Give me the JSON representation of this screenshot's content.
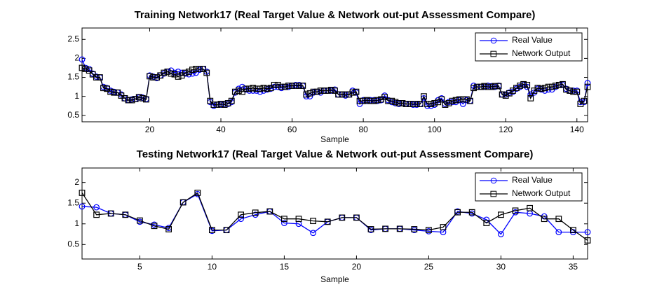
{
  "chart_data": [
    {
      "type": "line",
      "title": "Training Network17 (Real Target Value & Network out-put Assessment Compare)",
      "xlabel": "Sample",
      "x": [
        1,
        2,
        3,
        4,
        5,
        6,
        7,
        8,
        9,
        10,
        11,
        12,
        13,
        14,
        15,
        16,
        17,
        18,
        19,
        20,
        21,
        22,
        23,
        24,
        25,
        26,
        27,
        28,
        29,
        30,
        31,
        32,
        33,
        34,
        35,
        36,
        37,
        38,
        39,
        40,
        41,
        42,
        43,
        44,
        45,
        46,
        47,
        48,
        49,
        50,
        51,
        52,
        53,
        54,
        55,
        56,
        57,
        58,
        59,
        60,
        61,
        62,
        63,
        64,
        65,
        66,
        67,
        68,
        69,
        70,
        71,
        72,
        73,
        74,
        75,
        76,
        77,
        78,
        79,
        80,
        81,
        82,
        83,
        84,
        85,
        86,
        87,
        88,
        89,
        90,
        91,
        92,
        93,
        94,
        95,
        96,
        97,
        98,
        99,
        100,
        101,
        102,
        103,
        104,
        105,
        106,
        107,
        108,
        109,
        110,
        111,
        112,
        113,
        114,
        115,
        116,
        117,
        118,
        119,
        120,
        121,
        122,
        123,
        124,
        125,
        126,
        127,
        128,
        129,
        130,
        131,
        132,
        133,
        134,
        135,
        136,
        137,
        138,
        139,
        140,
        141,
        142,
        143
      ],
      "series": [
        {
          "name": "Real Value",
          "color": "#0000ff",
          "marker": "o",
          "values": [
            1.97,
            1.75,
            1.72,
            1.6,
            1.52,
            1.5,
            1.25,
            1.22,
            1.15,
            1.12,
            1.1,
            1.05,
            0.95,
            0.9,
            0.92,
            0.93,
            0.97,
            0.97,
            0.93,
            1.55,
            1.52,
            1.48,
            1.55,
            1.6,
            1.65,
            1.68,
            1.62,
            1.65,
            1.62,
            1.6,
            1.58,
            1.6,
            1.62,
            1.7,
            1.72,
            1.65,
            0.85,
            0.75,
            0.78,
            0.78,
            0.8,
            0.8,
            0.85,
            1.1,
            1.2,
            1.25,
            1.18,
            1.15,
            1.15,
            1.15,
            1.12,
            1.15,
            1.18,
            1.2,
            1.25,
            1.25,
            1.22,
            1.25,
            1.25,
            1.28,
            1.3,
            1.3,
            1.28,
            1.0,
            1.0,
            1.1,
            1.12,
            1.1,
            1.15,
            1.15,
            1.15,
            1.18,
            1.05,
            1.05,
            1.02,
            1.05,
            1.15,
            1.1,
            0.8,
            0.9,
            0.88,
            0.9,
            0.9,
            0.88,
            0.9,
            1.02,
            0.9,
            0.85,
            0.82,
            0.8,
            0.82,
            0.8,
            0.8,
            0.78,
            0.78,
            0.8,
            0.95,
            0.75,
            0.75,
            0.78,
            0.9,
            0.95,
            0.8,
            0.85,
            0.85,
            0.85,
            0.9,
            0.8,
            0.9,
            0.88,
            1.28,
            1.25,
            1.25,
            1.25,
            1.28,
            1.27,
            1.25,
            1.28,
            1.05,
            1.05,
            1.1,
            1.12,
            1.2,
            1.25,
            1.3,
            1.25,
            1.05,
            1.1,
            1.2,
            1.18,
            1.15,
            1.18,
            1.18,
            1.25,
            1.3,
            1.3,
            1.2,
            1.15,
            1.15,
            1.15,
            0.85,
            0.85,
            1.35
          ]
        },
        {
          "name": "Network Output",
          "color": "#000000",
          "marker": "s",
          "values": [
            1.75,
            1.72,
            1.68,
            1.58,
            1.5,
            1.5,
            1.22,
            1.2,
            1.12,
            1.1,
            1.1,
            1.02,
            0.95,
            0.9,
            0.9,
            0.93,
            0.98,
            0.95,
            0.92,
            1.53,
            1.5,
            1.5,
            1.55,
            1.62,
            1.65,
            1.6,
            1.58,
            1.52,
            1.55,
            1.62,
            1.65,
            1.7,
            1.72,
            1.72,
            1.72,
            1.62,
            0.88,
            0.78,
            0.78,
            0.8,
            0.78,
            0.82,
            0.88,
            1.12,
            1.15,
            1.12,
            1.2,
            1.2,
            1.22,
            1.2,
            1.2,
            1.22,
            1.2,
            1.22,
            1.3,
            1.3,
            1.25,
            1.25,
            1.28,
            1.28,
            1.28,
            1.28,
            1.28,
            1.05,
            1.08,
            1.12,
            1.12,
            1.15,
            1.15,
            1.15,
            1.17,
            1.15,
            1.05,
            1.05,
            1.05,
            1.05,
            1.1,
            1.12,
            0.88,
            0.88,
            0.9,
            0.88,
            0.88,
            0.9,
            0.92,
            0.98,
            0.88,
            0.88,
            0.85,
            0.82,
            0.82,
            0.8,
            0.8,
            0.8,
            0.8,
            0.8,
            1.0,
            0.8,
            0.8,
            0.82,
            0.85,
            0.92,
            0.78,
            0.82,
            0.88,
            0.9,
            0.92,
            0.92,
            0.92,
            0.88,
            1.22,
            1.25,
            1.25,
            1.27,
            1.25,
            1.25,
            1.27,
            1.27,
            1.05,
            1.02,
            1.08,
            1.15,
            1.22,
            1.28,
            1.32,
            1.3,
            0.95,
            1.15,
            1.22,
            1.2,
            1.22,
            1.25,
            1.25,
            1.28,
            1.3,
            1.32,
            1.18,
            1.15,
            1.12,
            1.12,
            0.8,
            0.88,
            1.25
          ]
        }
      ],
      "xlim": [
        1,
        143
      ],
      "ylim": [
        0.33,
        2.8
      ],
      "xticks": [
        20,
        40,
        60,
        80,
        100,
        120,
        140
      ],
      "yticks": [
        0.5,
        1,
        1.5,
        2,
        2.5
      ],
      "legend": "upper right"
    },
    {
      "type": "line",
      "title": "Testing Network17 (Real Target Value & Network out-put Assessment Compare)",
      "xlabel": "Sample",
      "x": [
        1,
        2,
        3,
        4,
        5,
        6,
        7,
        8,
        9,
        10,
        11,
        12,
        13,
        14,
        15,
        16,
        17,
        18,
        19,
        20,
        21,
        22,
        23,
        24,
        25,
        26,
        27,
        28,
        29,
        30,
        31,
        32,
        33,
        34,
        35,
        36
      ],
      "series": [
        {
          "name": "Real Value",
          "color": "#0000ff",
          "marker": "o",
          "values": [
            1.42,
            1.4,
            1.25,
            1.22,
            1.05,
            0.98,
            0.9,
            1.52,
            1.72,
            0.83,
            0.85,
            1.12,
            1.22,
            1.3,
            1.02,
            1.0,
            0.78,
            1.05,
            1.15,
            1.15,
            0.85,
            0.88,
            0.88,
            0.85,
            0.82,
            0.8,
            1.3,
            1.25,
            1.1,
            0.75,
            1.28,
            1.25,
            1.18,
            0.8,
            0.8,
            0.8
          ]
        },
        {
          "name": "Network Output",
          "color": "#000000",
          "marker": "s",
          "values": [
            1.75,
            1.22,
            1.25,
            1.22,
            1.08,
            0.95,
            0.87,
            1.52,
            1.75,
            0.85,
            0.85,
            1.22,
            1.27,
            1.3,
            1.12,
            1.12,
            1.07,
            1.05,
            1.15,
            1.15,
            0.87,
            0.88,
            0.88,
            0.87,
            0.85,
            0.92,
            1.28,
            1.28,
            1.02,
            1.22,
            1.32,
            1.38,
            1.12,
            1.12,
            0.85,
            0.6
          ]
        }
      ],
      "xlim": [
        1,
        36
      ],
      "ylim": [
        0.15,
        2.35
      ],
      "xticks": [
        5,
        10,
        15,
        20,
        25,
        30,
        35
      ],
      "yticks": [
        0.5,
        1,
        1.5,
        2
      ],
      "legend": "upper right"
    }
  ]
}
